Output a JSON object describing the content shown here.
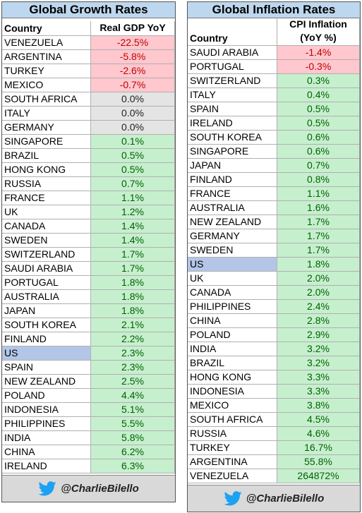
{
  "tables": [
    {
      "title": "Global Growth Rates",
      "header": [
        "Country",
        "Real GDP YoY"
      ],
      "handle": "@CharlieBilello",
      "rows": [
        [
          "VENEZUELA",
          "-22.5%",
          "#ffc7ce",
          "#c00000"
        ],
        [
          "ARGENTINA",
          "-5.8%",
          "#ffc7ce",
          "#c00000"
        ],
        [
          "TURKEY",
          "-2.6%",
          "#ffc7ce",
          "#c00000"
        ],
        [
          "MEXICO",
          "-0.7%",
          "#ffc7ce",
          "#c00000"
        ],
        [
          "SOUTH AFRICA",
          "0.0%",
          "#e4e4e4",
          "#222222"
        ],
        [
          "ITALY",
          "0.0%",
          "#e4e4e4",
          "#222222"
        ],
        [
          "GERMANY",
          "0.0%",
          "#e4e4e4",
          "#222222"
        ],
        [
          "SINGAPORE",
          "0.1%",
          "#c6efce",
          "#006100"
        ],
        [
          "BRAZIL",
          "0.5%",
          "#c6efce",
          "#006100"
        ],
        [
          "HONG KONG",
          "0.5%",
          "#c6efce",
          "#006100"
        ],
        [
          "RUSSIA",
          "0.7%",
          "#c6efce",
          "#006100"
        ],
        [
          "FRANCE",
          "1.1%",
          "#c6efce",
          "#006100"
        ],
        [
          "UK",
          "1.2%",
          "#c6efce",
          "#006100"
        ],
        [
          "CANADA",
          "1.4%",
          "#c6efce",
          "#006100"
        ],
        [
          "SWEDEN",
          "1.4%",
          "#c6efce",
          "#006100"
        ],
        [
          "SWITZERLAND",
          "1.7%",
          "#c6efce",
          "#006100"
        ],
        [
          "SAUDI ARABIA",
          "1.7%",
          "#c6efce",
          "#006100"
        ],
        [
          "PORTUGAL",
          "1.8%",
          "#c6efce",
          "#006100"
        ],
        [
          "AUSTRALIA",
          "1.8%",
          "#c6efce",
          "#006100"
        ],
        [
          "JAPAN",
          "1.8%",
          "#c6efce",
          "#006100"
        ],
        [
          "SOUTH KOREA",
          "2.1%",
          "#c6efce",
          "#006100"
        ],
        [
          "FINLAND",
          "2.2%",
          "#c6efce",
          "#006100"
        ],
        [
          "US",
          "2.3%",
          "#c6efce",
          "#006100",
          "#b4c6e7"
        ],
        [
          "SPAIN",
          "2.3%",
          "#c6efce",
          "#006100"
        ],
        [
          "NEW ZEALAND",
          "2.5%",
          "#c6efce",
          "#006100"
        ],
        [
          "POLAND",
          "4.4%",
          "#c6efce",
          "#006100"
        ],
        [
          "INDONESIA",
          "5.1%",
          "#c6efce",
          "#006100"
        ],
        [
          "PHILIPPINES",
          "5.5%",
          "#c6efce",
          "#006100"
        ],
        [
          "INDIA",
          "5.8%",
          "#c6efce",
          "#006100"
        ],
        [
          "CHINA",
          "6.2%",
          "#c6efce",
          "#006100"
        ],
        [
          "IRELAND",
          "6.3%",
          "#c6efce",
          "#006100"
        ]
      ]
    },
    {
      "title": "Global Inflation Rates",
      "header": [
        "Country",
        "CPI Inflation",
        "(YoY %)"
      ],
      "handle": "@CharlieBilello",
      "rows": [
        [
          "SAUDI ARABIA",
          "-1.4%",
          "#ffc7ce",
          "#c00000"
        ],
        [
          "PORTUGAL",
          "-0.3%",
          "#ffc7ce",
          "#c00000"
        ],
        [
          "SWITZERLAND",
          "0.3%",
          "#c6efce",
          "#006100"
        ],
        [
          "ITALY",
          "0.4%",
          "#c6efce",
          "#006100"
        ],
        [
          "SPAIN",
          "0.5%",
          "#c6efce",
          "#006100"
        ],
        [
          "IRELAND",
          "0.5%",
          "#c6efce",
          "#006100"
        ],
        [
          "SOUTH KOREA",
          "0.6%",
          "#c6efce",
          "#006100"
        ],
        [
          "SINGAPORE",
          "0.6%",
          "#c6efce",
          "#006100"
        ],
        [
          "JAPAN",
          "0.7%",
          "#c6efce",
          "#006100"
        ],
        [
          "FINLAND",
          "0.8%",
          "#c6efce",
          "#006100"
        ],
        [
          "FRANCE",
          "1.1%",
          "#c6efce",
          "#006100"
        ],
        [
          "AUSTRALIA",
          "1.6%",
          "#c6efce",
          "#006100"
        ],
        [
          "NEW ZEALAND",
          "1.7%",
          "#c6efce",
          "#006100"
        ],
        [
          "GERMANY",
          "1.7%",
          "#c6efce",
          "#006100"
        ],
        [
          "SWEDEN",
          "1.7%",
          "#c6efce",
          "#006100"
        ],
        [
          "US",
          "1.8%",
          "#c6efce",
          "#006100",
          "#b4c6e7"
        ],
        [
          "UK",
          "2.0%",
          "#c6efce",
          "#006100"
        ],
        [
          "CANADA",
          "2.0%",
          "#c6efce",
          "#006100"
        ],
        [
          "PHILIPPINES",
          "2.4%",
          "#c6efce",
          "#006100"
        ],
        [
          "CHINA",
          "2.8%",
          "#c6efce",
          "#006100"
        ],
        [
          "POLAND",
          "2.9%",
          "#c6efce",
          "#006100"
        ],
        [
          "INDIA",
          "3.2%",
          "#c6efce",
          "#006100"
        ],
        [
          "BRAZIL",
          "3.2%",
          "#c6efce",
          "#006100"
        ],
        [
          "HONG KONG",
          "3.3%",
          "#c6efce",
          "#006100"
        ],
        [
          "INDONESIA",
          "3.3%",
          "#c6efce",
          "#006100"
        ],
        [
          "MEXICO",
          "3.8%",
          "#c6efce",
          "#006100"
        ],
        [
          "SOUTH AFRICA",
          "4.5%",
          "#c6efce",
          "#006100"
        ],
        [
          "RUSSIA",
          "4.6%",
          "#c6efce",
          "#006100"
        ],
        [
          "TURKEY",
          "16.7%",
          "#c6efce",
          "#006100"
        ],
        [
          "ARGENTINA",
          "55.8%",
          "#c6efce",
          "#006100"
        ],
        [
          "VENEZUELA",
          "264872%",
          "#c6efce",
          "#006100"
        ]
      ]
    }
  ]
}
